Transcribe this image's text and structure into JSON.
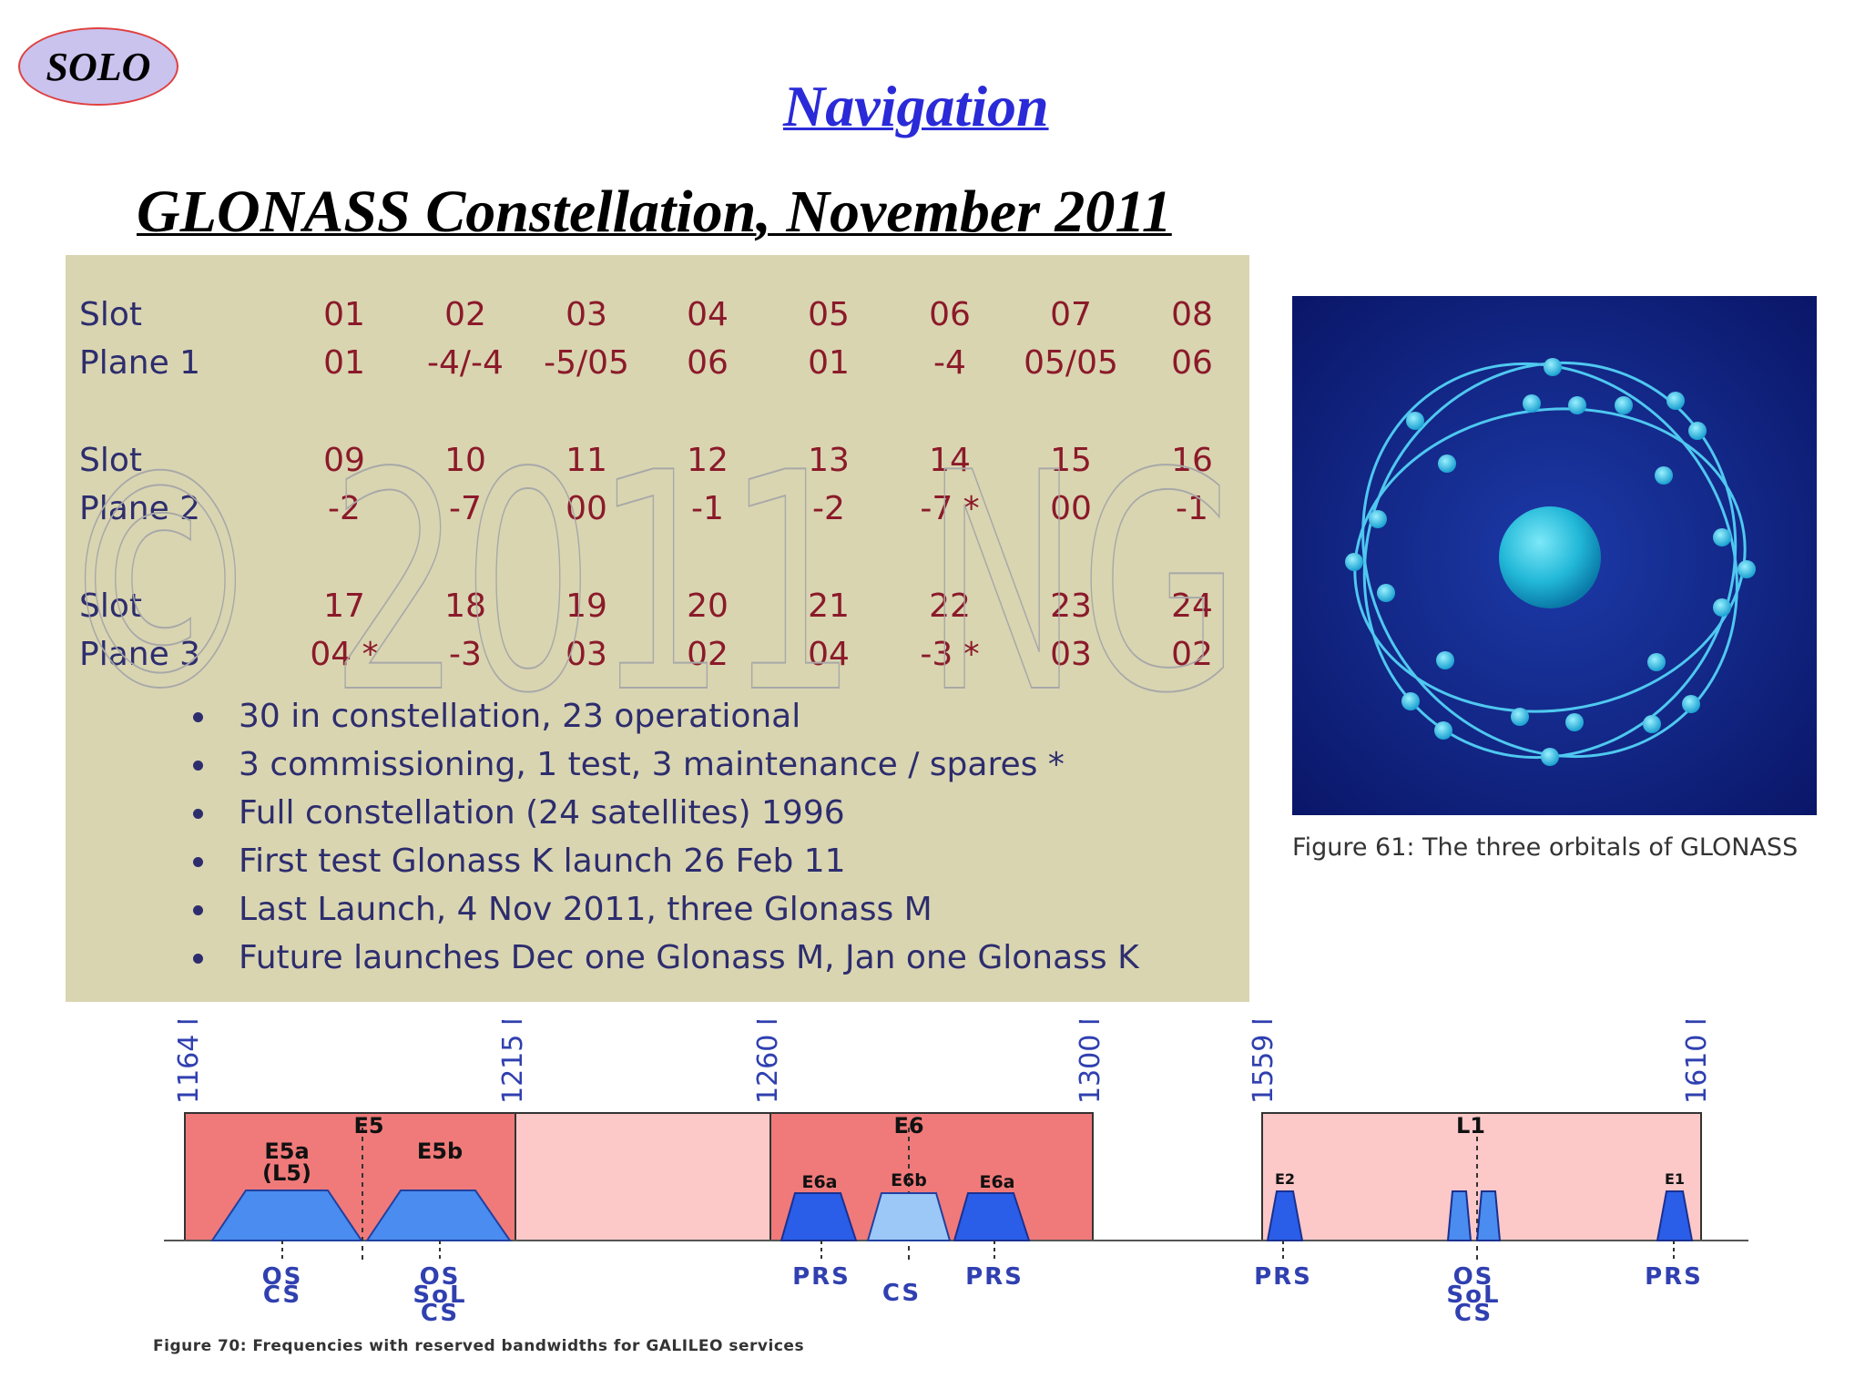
{
  "badge": {
    "label": "SOLO"
  },
  "header": {
    "section_title": "Navigation",
    "title": "GLONASS Constellation, November 2011"
  },
  "table": {
    "blocks": [
      {
        "slot_label": "Slot",
        "plane_label": "Plane 1",
        "slots": [
          "01",
          "02",
          "03",
          "04",
          "05",
          "06",
          "07",
          "08"
        ],
        "values": [
          "01",
          "-4/-4",
          "-5/05",
          "06",
          "01",
          "-4",
          "05/05",
          "06"
        ]
      },
      {
        "slot_label": "Slot",
        "plane_label": "Plane 2",
        "slots": [
          "09",
          "10",
          "11",
          "12",
          "13",
          "14",
          "15",
          "16"
        ],
        "values": [
          "-2",
          "-7",
          "00",
          "-1",
          "-2",
          "-7 *",
          "00",
          "-1"
        ]
      },
      {
        "slot_label": "Slot",
        "plane_label": "Plane 3",
        "slots": [
          "17",
          "18",
          "19",
          "20",
          "21",
          "22",
          "23",
          "24"
        ],
        "values": [
          "04 *",
          "-3",
          "03",
          "02",
          "04",
          "-3 *",
          "03",
          "02"
        ]
      }
    ],
    "watermark": "© 2011 NG"
  },
  "bullets": [
    "30 in constellation, 23 operational",
    "3 commissioning, 1 test, 3 maintenance / spares *",
    "Full constellation (24 satellites) 1996",
    "First test Glonass K launch 26 Feb 11",
    "Last Launch, 4 Nov 2011, three Glonass M",
    "Future launches Dec one Glonass M, Jan one Glonass K"
  ],
  "orbit_figure": {
    "caption": "Figure 61: The three orbitals of GLONASS",
    "colors": {
      "background": "#0f1e7a",
      "orbit": "#4fc8f0",
      "earth": "#2fc0e0"
    }
  },
  "freq_diagram": {
    "caption": "Figure 70: Frequencies with reserved bandwidths for GALILEO services",
    "frequencies": [
      "1164 MHz",
      "1215 MHz",
      "1260 MHz",
      "1300 MHz",
      "1559 MHz",
      "1610 MHz"
    ],
    "bands": {
      "e5": "E5",
      "e6": "E6",
      "l1": "L1"
    },
    "signals": {
      "e5a": "E5a",
      "l5": "(L5)",
      "e5b": "E5b",
      "e6a_left": "E6a",
      "e6b": "E6b",
      "e6a_right": "E6a",
      "e2": "E2",
      "e1": "E1"
    },
    "services": {
      "e5a_1": "OS",
      "e5a_2": "CS",
      "e5b_1": "OS",
      "e5b_2": "SoL",
      "e5b_3": "CS",
      "e6_prs_left": "PRS",
      "e6_cs": "CS",
      "e6_prs_right": "PRS",
      "l1_prs_left": "PRS",
      "l1_os": "OS",
      "l1_sol": "SoL",
      "l1_cs": "CS",
      "l1_prs_right": "PRS"
    },
    "colors": {
      "band_dark": "#f07a7a",
      "band_light": "#fcc8c8",
      "signal": "#4a8cf0",
      "signal_dark": "#2a5ee8",
      "signal_light": "#9cc8f8",
      "label_blue": "#3040b0"
    }
  }
}
